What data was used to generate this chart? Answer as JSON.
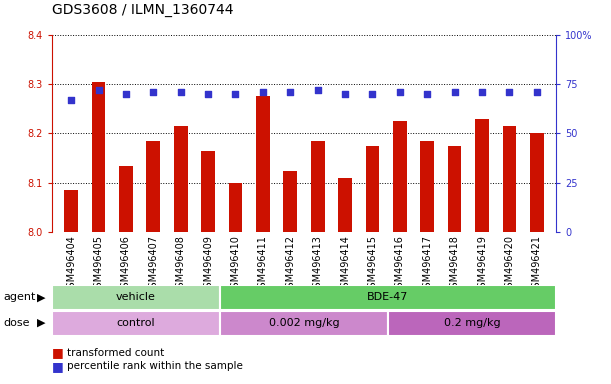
{
  "title": "GDS3608 / ILMN_1360744",
  "samples": [
    "GSM496404",
    "GSM496405",
    "GSM496406",
    "GSM496407",
    "GSM496408",
    "GSM496409",
    "GSM496410",
    "GSM496411",
    "GSM496412",
    "GSM496413",
    "GSM496414",
    "GSM496415",
    "GSM496416",
    "GSM496417",
    "GSM496418",
    "GSM496419",
    "GSM496420",
    "GSM496421"
  ],
  "bar_values": [
    8.085,
    8.305,
    8.135,
    8.185,
    8.215,
    8.165,
    8.1,
    8.275,
    8.125,
    8.185,
    8.11,
    8.175,
    8.225,
    8.185,
    8.175,
    8.23,
    8.215,
    8.2
  ],
  "percentile_values": [
    67,
    72,
    70,
    71,
    71,
    70,
    70,
    71,
    71,
    72,
    70,
    70,
    71,
    70,
    71,
    71,
    71,
    71
  ],
  "ylim_left": [
    8.0,
    8.4
  ],
  "ylim_right": [
    0,
    100
  ],
  "yticks_left": [
    8.0,
    8.1,
    8.2,
    8.3,
    8.4
  ],
  "yticks_right": [
    0,
    25,
    50,
    75,
    100
  ],
  "ytick_labels_right": [
    "0",
    "25",
    "50",
    "75",
    "100%"
  ],
  "bar_color": "#cc1100",
  "dot_color": "#3333cc",
  "agent_groups": [
    {
      "label": "vehicle",
      "start": 0,
      "end": 6,
      "color": "#aaddaa"
    },
    {
      "label": "BDE-47",
      "start": 6,
      "end": 18,
      "color": "#66cc66"
    }
  ],
  "dose_groups": [
    {
      "label": "control",
      "start": 0,
      "end": 6,
      "color": "#ddaadd"
    },
    {
      "label": "0.002 mg/kg",
      "start": 6,
      "end": 12,
      "color": "#cc88cc"
    },
    {
      "label": "0.2 mg/kg",
      "start": 12,
      "end": 18,
      "color": "#bb66bb"
    }
  ],
  "legend_items": [
    {
      "label": "transformed count",
      "color": "#cc1100"
    },
    {
      "label": "percentile rank within the sample",
      "color": "#3333cc"
    }
  ],
  "bar_width": 0.5,
  "title_fontsize": 10,
  "tick_fontsize": 7,
  "label_fontsize": 8,
  "row_fontsize": 8
}
